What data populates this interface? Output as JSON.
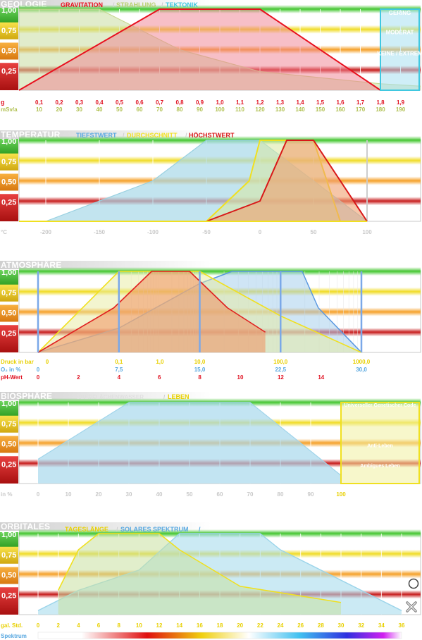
{
  "colors": {
    "green": "#46c832",
    "yellow": "#f0dc28",
    "orange": "#f5a028",
    "red": "#c81e1e",
    "cyan": "#60d0e8",
    "gravitation": "#e8101e",
    "strahlung": "#b8d070",
    "tektonik": "#40c8e0",
    "tiefstwert": "#7ccfe6",
    "durchschnitt": "#f0e020",
    "hoechstwert": "#d81818",
    "label_red": "#e01020",
    "label_blue": "#58a8e0",
    "label_olive": "#b0c050",
    "label_yellow": "#e8d000"
  },
  "level_labels": [
    "1,00",
    "0,75",
    "0,50",
    "0,25"
  ],
  "legend_boxes": {
    "geologie": [
      "GERING",
      "MODERAT",
      "KEINE / EXTREM"
    ],
    "biosphaere": [
      "Universeller Genetischer Code",
      "Anti-Leben",
      "Ambigues Leben"
    ]
  },
  "icons": [
    "circle-icon",
    "cross-icon"
  ],
  "chart_data": [
    {
      "type": "area",
      "title": "GEOLOGIE",
      "legend": [
        "GRAVITATION",
        "STRAHLUNG",
        "TEKTONIK"
      ],
      "axes": [
        {
          "label": "g",
          "ticks": [
            "0,1",
            "0,2",
            "0,3",
            "0,4",
            "0,5",
            "0,6",
            "0,7",
            "0,8",
            "0,9",
            "1,0",
            "1,1",
            "1,2",
            "1,3",
            "1,4",
            "1,5",
            "1,6",
            "1,7",
            "1,8",
            "1,9"
          ]
        },
        {
          "label": "mSv/a",
          "ticks": [
            "10",
            "20",
            "30",
            "40",
            "50",
            "60",
            "70",
            "80",
            "90",
            "100",
            "110",
            "120",
            "130",
            "140",
            "150",
            "160",
            "170",
            "180",
            "190"
          ]
        }
      ],
      "xlim": [
        0,
        2.0
      ],
      "ylim": [
        0,
        1
      ],
      "series": [
        {
          "name": "GRAVITATION",
          "x": [
            0,
            0.7,
            1.2,
            1.8
          ],
          "y": [
            0,
            1,
            1,
            0
          ]
        },
        {
          "name": "STRAHLUNG",
          "x": [
            0,
            0.4,
            0.8,
            1.2,
            1.8,
            2.0
          ],
          "y": [
            1,
            1,
            0.5,
            0.23,
            0.08,
            0.05
          ]
        }
      ]
    },
    {
      "type": "area",
      "title": "TEMPERATUR",
      "legend": [
        "TIEFSTWERT",
        "DURCHSCHNITT",
        "HÖCHSTWERT"
      ],
      "axes": [
        {
          "label": "°C",
          "ticks": [
            "-200",
            "-150",
            "-100",
            "-50",
            "0",
            "50",
            "100"
          ]
        }
      ],
      "xlim": [
        -225,
        150
      ],
      "ylim": [
        0,
        1
      ],
      "series": [
        {
          "name": "TIEFSTWERT",
          "x": [
            -200,
            -100,
            -50,
            0,
            100
          ],
          "y": [
            0,
            0.5,
            1,
            1,
            0
          ]
        },
        {
          "name": "DURCHSCHNITT",
          "x": [
            -50,
            -10,
            0,
            50,
            75
          ],
          "y": [
            0,
            0.5,
            1,
            1,
            0
          ]
        },
        {
          "name": "HÖCHSTWERT",
          "x": [
            -50,
            0,
            25,
            50,
            100
          ],
          "y": [
            0,
            0.25,
            1,
            1,
            0
          ]
        }
      ]
    },
    {
      "type": "area",
      "title": "ATMOSPHÄRE",
      "axes": [
        {
          "label": "Druck in bar",
          "ticks": [
            "0",
            "0,1",
            "1,0",
            "10,0",
            "100,0",
            "1000,0"
          ]
        },
        {
          "label": "O₂ in %",
          "ticks": [
            "0",
            "7,5",
            "15,0",
            "22,5",
            "30,0"
          ]
        },
        {
          "label": "pH-Wert",
          "ticks": [
            "0",
            "2",
            "4",
            "6",
            "8",
            "10",
            "12",
            "14"
          ]
        }
      ],
      "ylim": [
        0,
        1
      ],
      "series": [
        {
          "name": "Druck",
          "x": [
            0,
            0.1,
            1.0,
            10.0,
            100.0,
            1000.0
          ],
          "y": [
            0,
            1,
            1,
            1,
            0.45,
            0
          ]
        },
        {
          "name": "O2",
          "x": [
            0,
            7.5,
            15.0,
            18.0,
            24.5,
            26.0,
            30.0
          ],
          "y": [
            0,
            0.3,
            0.85,
            1,
            1,
            0.55,
            0
          ]
        },
        {
          "name": "pH",
          "x": [
            0,
            4,
            6,
            8,
            10,
            12
          ],
          "y": [
            0,
            0.55,
            1,
            1,
            0.55,
            0.25
          ]
        }
      ]
    },
    {
      "type": "area",
      "title": "BIOSPHÄRE",
      "legend": [
        "OBERFLÄCHENWASSER",
        "LEBEN"
      ],
      "axes": [
        {
          "label": "in %",
          "ticks": [
            "0",
            "10",
            "20",
            "30",
            "40",
            "50",
            "60",
            "70",
            "80",
            "90",
            "100"
          ]
        }
      ],
      "xlim": [
        -12,
        140
      ],
      "ylim": [
        0,
        1
      ],
      "series": [
        {
          "name": "OBERFLÄCHENWASSER",
          "x": [
            0,
            30,
            70,
            100
          ],
          "y": [
            0.3,
            1,
            1,
            0.1
          ]
        }
      ]
    },
    {
      "type": "area",
      "title": "ORBITALES",
      "legend": [
        "TAGESLÄNGE",
        "SOLARES SPEKTRUM"
      ],
      "axes": [
        {
          "label": "gal. Std.",
          "ticks": [
            "0",
            "2",
            "4",
            "6",
            "8",
            "10",
            "12",
            "14",
            "16",
            "18",
            "20",
            "22",
            "24",
            "26",
            "28",
            "30",
            "32",
            "34",
            "36"
          ]
        },
        {
          "label": "Spektrum",
          "ticks": []
        }
      ],
      "xlim": [
        -3.5,
        38
      ],
      "ylim": [
        0,
        1
      ],
      "series": [
        {
          "name": "TAGESLÄNGE",
          "x": [
            2,
            4,
            6,
            12,
            14,
            20,
            30
          ],
          "y": [
            0.3,
            0.8,
            1,
            1,
            0.8,
            0.35,
            0.15
          ]
        },
        {
          "name": "SOLARES SPEKTRUM",
          "x": [
            0,
            4,
            10,
            14,
            22,
            24,
            36
          ],
          "y": [
            0.05,
            0.3,
            0.55,
            1,
            1,
            0.8,
            0.05
          ]
        }
      ]
    }
  ]
}
